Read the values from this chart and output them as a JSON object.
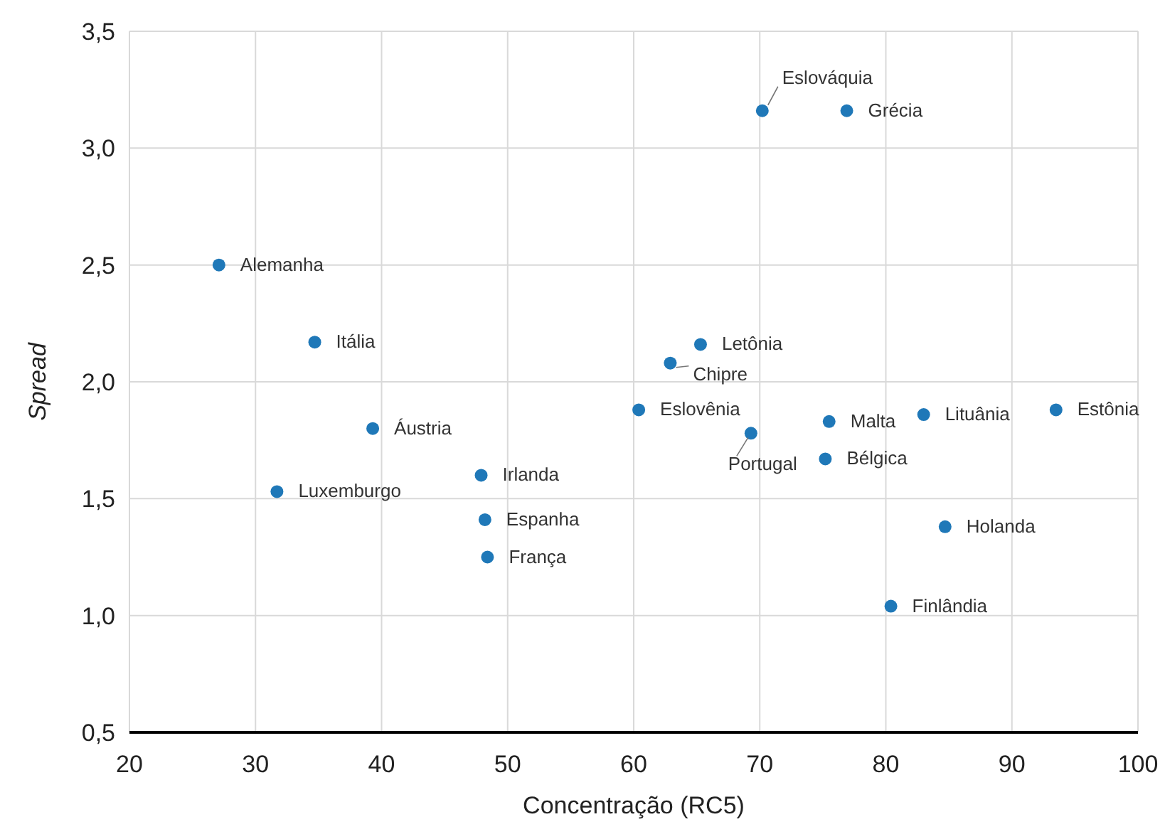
{
  "chart_data": {
    "type": "scatter",
    "xlabel": "Concentração (RC5)",
    "ylabel": "Spread",
    "x": [
      27.1,
      34.7,
      39.3,
      31.7,
      47.9,
      48.2,
      48.4,
      60.4,
      62.9,
      65.3,
      70.2,
      76.9,
      69.3,
      75.5,
      75.2,
      83.0,
      93.5,
      84.7,
      80.4
    ],
    "series": [
      {
        "color": "#1f78b8",
        "values": [
          2.5,
          2.17,
          1.8,
          1.53,
          1.6,
          1.41,
          1.25,
          1.88,
          2.08,
          2.16,
          3.16,
          3.16,
          1.78,
          1.83,
          1.67,
          1.86,
          1.88,
          1.38,
          1.04
        ]
      }
    ],
    "annotations": [
      {
        "text": "Alemanha",
        "x": 27.1,
        "y": 2.5
      },
      {
        "text": "Itália",
        "x": 34.7,
        "y": 2.17
      },
      {
        "text": "Áustria",
        "x": 39.3,
        "y": 1.8
      },
      {
        "text": "Luxemburgo",
        "x": 31.7,
        "y": 1.53
      },
      {
        "text": "Irlanda",
        "x": 47.9,
        "y": 1.6
      },
      {
        "text": "Espanha",
        "x": 48.2,
        "y": 1.41
      },
      {
        "text": "França",
        "x": 48.4,
        "y": 1.25
      },
      {
        "text": "Eslovênia",
        "x": 60.4,
        "y": 1.88
      },
      {
        "text": "Chipre",
        "x": 62.9,
        "y": 2.08
      },
      {
        "text": "Letônia",
        "x": 65.3,
        "y": 2.16
      },
      {
        "text": "Eslováquia",
        "x": 70.2,
        "y": 3.16
      },
      {
        "text": "Grécia",
        "x": 76.9,
        "y": 3.16
      },
      {
        "text": "Portugal",
        "x": 69.3,
        "y": 1.78
      },
      {
        "text": "Malta",
        "x": 75.5,
        "y": 1.83
      },
      {
        "text": "Bélgica",
        "x": 75.2,
        "y": 1.67
      },
      {
        "text": "Lituânia",
        "x": 83.0,
        "y": 1.86
      },
      {
        "text": "Estônia",
        "x": 93.5,
        "y": 1.88
      },
      {
        "text": "Holanda",
        "x": 84.7,
        "y": 1.38
      },
      {
        "text": "Finlândia",
        "x": 80.4,
        "y": 1.04
      }
    ],
    "xlim": [
      20,
      100
    ],
    "xticks": [
      20,
      30,
      40,
      50,
      60,
      70,
      80,
      90,
      100
    ],
    "ylim": [
      0.5,
      3.5
    ],
    "yticks": [
      {
        "value": 0.5,
        "label": "0,5"
      },
      {
        "value": 1.0,
        "label": "1,0"
      },
      {
        "value": 1.5,
        "label": "1,5"
      },
      {
        "value": 2.0,
        "label": "2,0"
      },
      {
        "value": 2.5,
        "label": "2,5"
      },
      {
        "value": 3.0,
        "label": "3,0"
      },
      {
        "value": 3.5,
        "label": "3,5"
      }
    ],
    "grid": true,
    "marker": "circle"
  }
}
